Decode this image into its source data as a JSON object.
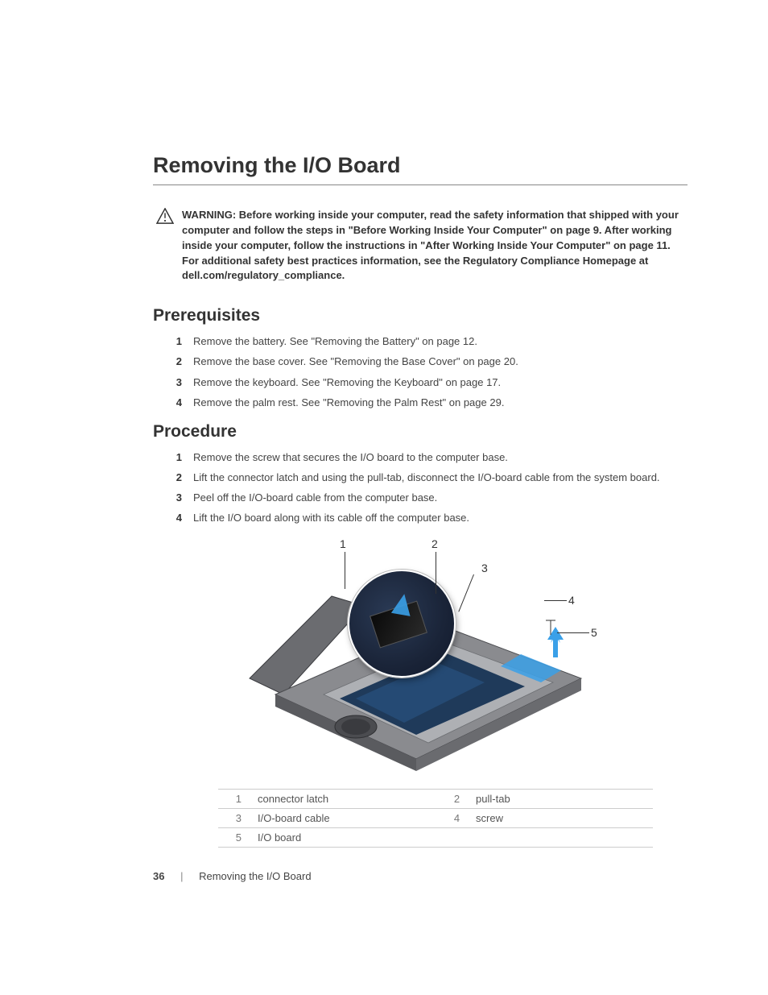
{
  "page": {
    "title": "Removing the I/O Board",
    "page_number": "36",
    "footer_separator": "|",
    "footer_title": "Removing the I/O Board"
  },
  "warning": {
    "label": "WARNING:",
    "text": "Before working inside your computer, read the safety information that shipped with your computer and follow the steps in \"Before Working Inside Your Computer\" on page 9. After working inside your computer, follow the instructions in \"After Working Inside Your Computer\" on page 11. For additional safety best practices information, see the Regulatory Compliance Homepage at dell.com/regulatory_compliance.",
    "icon_stroke": "#333333"
  },
  "sections": {
    "prerequisites": {
      "heading": "Prerequisites",
      "items": [
        "Remove the battery. See \"Removing the Battery\" on page 12.",
        "Remove the base cover. See \"Removing the Base Cover\" on page 20.",
        "Remove the keyboard. See \"Removing the Keyboard\" on page 17.",
        "Remove the palm rest. See \"Removing the Palm Rest\" on page 29."
      ]
    },
    "procedure": {
      "heading": "Procedure",
      "items": [
        "Remove the screw that secures the I/O board to the computer base.",
        "Lift the connector latch and using the pull-tab, disconnect the I/O-board cable from the system board.",
        "Peel off the I/O-board cable from the computer base.",
        "Lift the I/O board along with its cable off the computer base."
      ]
    }
  },
  "figure": {
    "callouts": [
      "1",
      "2",
      "3",
      "4",
      "5"
    ],
    "legend_rows": [
      {
        "n": "1",
        "label": "connector latch"
      },
      {
        "n": "2",
        "label": "pull-tab"
      },
      {
        "n": "3",
        "label": "I/O-board cable"
      },
      {
        "n": "4",
        "label": "screw"
      },
      {
        "n": "5",
        "label": "I/O board"
      }
    ],
    "colors": {
      "arrow": "#3aa0e8",
      "chassis_top": "#7d7d80",
      "chassis_side": "#55565a",
      "board": "#1f3a5a",
      "board_highlight": "#3aa0e8",
      "line": "#333333"
    }
  }
}
